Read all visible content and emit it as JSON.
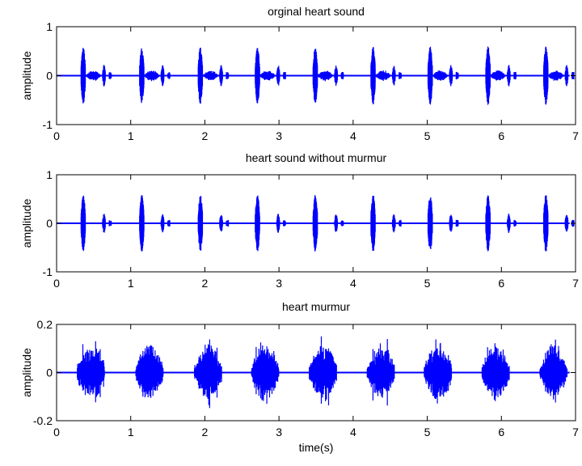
{
  "chart_data": [
    {
      "type": "line",
      "title": "orginal heart sound",
      "xlabel": "",
      "ylabel": "amplitude",
      "xlim": [
        0,
        7
      ],
      "ylim": [
        -1,
        1
      ],
      "xticks": [
        0,
        1,
        2,
        3,
        4,
        5,
        6,
        7
      ],
      "yticks": [
        -1,
        0,
        1
      ],
      "grid": false,
      "color": "#0000ff",
      "signal": {
        "cycle_starts": [
          0.33,
          1.12,
          1.91,
          2.68,
          3.46,
          4.24,
          5.01,
          5.79,
          6.57
        ],
        "s1_amplitude": 0.6,
        "s2_amplitude": 0.22,
        "murmur_amplitude": 0.12
      }
    },
    {
      "type": "line",
      "title": "heart sound without murmur",
      "xlabel": "",
      "ylabel": "amplitude",
      "xlim": [
        0,
        7
      ],
      "ylim": [
        -1,
        1
      ],
      "xticks": [
        0,
        1,
        2,
        3,
        4,
        5,
        6,
        7
      ],
      "yticks": [
        -1,
        0,
        1
      ],
      "grid": false,
      "color": "#0000ff",
      "signal": {
        "cycle_starts": [
          0.33,
          1.12,
          1.91,
          2.68,
          3.46,
          4.24,
          5.01,
          5.79,
          6.57
        ],
        "s1_amplitude": 0.6,
        "s2_amplitude": 0.2,
        "murmur_amplitude": 0
      }
    },
    {
      "type": "line",
      "title": "heart murmur",
      "xlabel": "time(s)",
      "ylabel": "amplitude",
      "xlim": [
        0,
        7
      ],
      "ylim": [
        -0.2,
        0.2
      ],
      "xticks": [
        0,
        1,
        2,
        3,
        4,
        5,
        6,
        7
      ],
      "yticks": [
        -0.2,
        0,
        0.2
      ],
      "ytick_labels": [
        "-0.2",
        "0",
        "0.2"
      ],
      "grid": false,
      "color": "#0000ff",
      "signal": {
        "cycle_starts": [
          0.33,
          1.12,
          1.91,
          2.68,
          3.46,
          4.24,
          5.01,
          5.79,
          6.57
        ],
        "s1_amplitude": 0,
        "s2_amplitude": 0,
        "murmur_amplitude": 0.13
      }
    }
  ]
}
